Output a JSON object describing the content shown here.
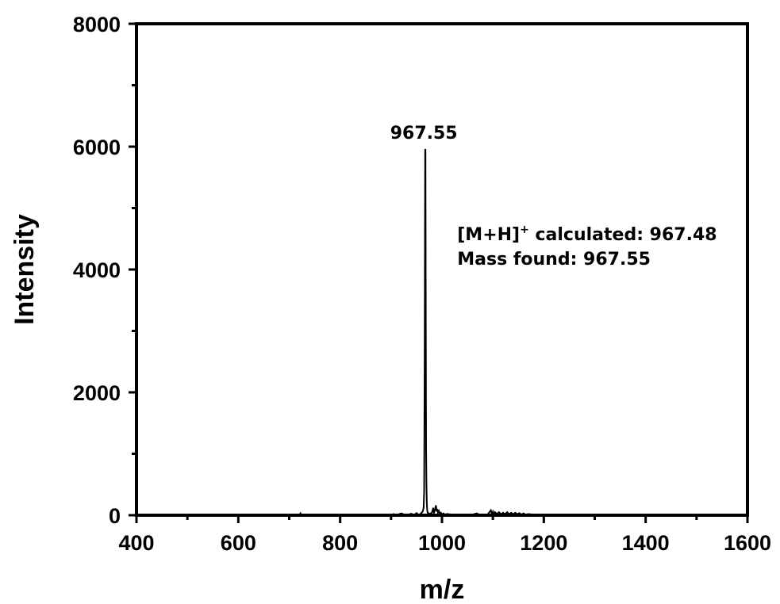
{
  "chart_data": {
    "type": "line",
    "title": "",
    "xlabel": "m/z",
    "ylabel": "Intensity",
    "xlim": [
      400,
      1600
    ],
    "ylim": [
      0,
      8000
    ],
    "x_ticks": [
      400,
      600,
      800,
      1000,
      1200,
      1400,
      1600
    ],
    "y_ticks": [
      0,
      2000,
      4000,
      6000,
      8000
    ],
    "x_tick_labels": [
      "400",
      "600",
      "800",
      "1000",
      "1200",
      "1400",
      "1600"
    ],
    "y_tick_labels": [
      "0",
      "2000",
      "4000",
      "6000",
      "8000"
    ],
    "grid": false,
    "legend": "none",
    "line_color": "#000000",
    "series": [
      {
        "x": [
          400,
          720,
          722,
          724,
          760,
          900,
          905,
          910,
          920,
          930,
          940,
          945,
          950,
          955,
          960,
          962,
          964,
          965,
          966,
          967,
          967.55,
          968.2,
          968.8,
          969.5,
          970.2,
          971,
          972,
          974,
          976,
          980,
          983,
          984,
          986,
          988,
          990,
          991,
          992,
          994,
          996,
          998,
          1000,
          1003,
          1006,
          1010,
          1020,
          1040,
          1060,
          1068,
          1072,
          1076,
          1090,
          1096,
          1098,
          1100,
          1102,
          1104,
          1108,
          1112,
          1116,
          1120,
          1124,
          1128,
          1132,
          1136,
          1140,
          1144,
          1148,
          1152,
          1156,
          1160,
          1164,
          1170,
          1180,
          1200,
          1600
        ],
        "y": [
          0,
          0,
          30,
          0,
          0,
          0,
          20,
          0,
          30,
          0,
          25,
          0,
          35,
          0,
          40,
          60,
          120,
          400,
          2500,
          5950,
          5950,
          3200,
          1100,
          500,
          200,
          80,
          40,
          30,
          20,
          40,
          120,
          30,
          80,
          160,
          60,
          100,
          40,
          70,
          20,
          40,
          15,
          30,
          10,
          20,
          10,
          10,
          10,
          30,
          15,
          10,
          15,
          80,
          20,
          60,
          10,
          50,
          20,
          50,
          15,
          40,
          15,
          50,
          15,
          40,
          15,
          40,
          15,
          35,
          10,
          30,
          10,
          20,
          10,
          0,
          0
        ]
      }
    ],
    "annotations": {
      "peak_label": "967.55",
      "peak_x": 967.55,
      "peak_y": 5950,
      "calc_prefix": "[M+H]",
      "calc_superscript": "+",
      "calc_text": " calculated: 967.48",
      "found_text": "Mass found: 967.55",
      "text_anchor_x": 1030,
      "calc_y": 4480,
      "found_y": 4080
    }
  }
}
